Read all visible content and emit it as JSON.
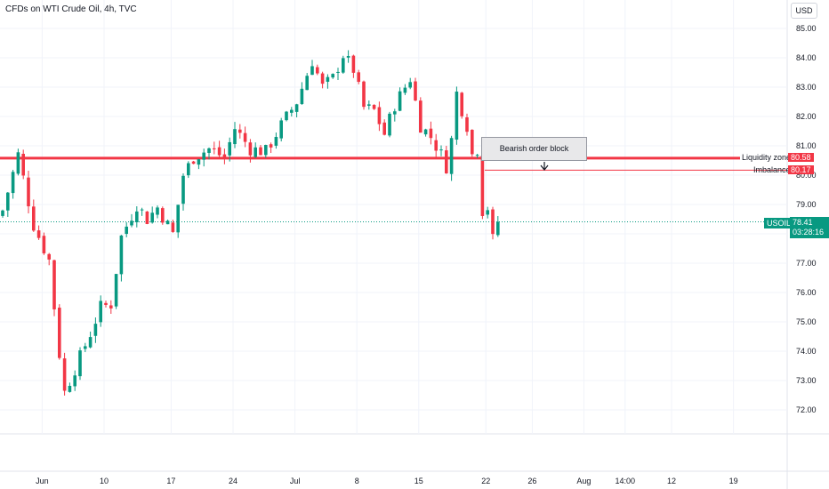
{
  "header": {
    "title": "CFDs on WTI Crude Oil, 4h, TVC",
    "currency_button": "USD"
  },
  "annotations": {
    "order_block_label": "Bearish order block",
    "liquidity_label": "Liquidity zone",
    "liquidity_price": "80.58",
    "imbalance_label": "Imbalance",
    "imbalance_price": "80.17",
    "symbol": "USOIL",
    "last_price": "78.41",
    "countdown": "03:28:16"
  },
  "colors": {
    "up": "#089981",
    "down": "#f23645",
    "zone_line": "#f23645",
    "grid": "#f0f3fa"
  },
  "chart_data": {
    "type": "candlestick",
    "title": "CFDs on WTI Crude Oil, 4h, TVC",
    "y_ticks": [
      85.0,
      84.0,
      83.0,
      82.0,
      81.0,
      80.0,
      79.0,
      78.0,
      77.0,
      76.0,
      75.0,
      74.0,
      73.0,
      72.0
    ],
    "ylim": [
      71.0,
      85.4
    ],
    "x_tick_labels": [
      "Jun",
      "10",
      "17",
      "24",
      "Jul",
      "8",
      "15",
      "22",
      "26",
      "Aug",
      "14:00",
      "12",
      "19"
    ],
    "x_tick_index": [
      8,
      20,
      33,
      45,
      57,
      69,
      81,
      94,
      103,
      113,
      121,
      130,
      142
    ],
    "levels": [
      {
        "name": "Liquidity zone",
        "value": 80.58
      },
      {
        "name": "Imbalance",
        "value": 80.17
      }
    ],
    "last_price": 78.41,
    "series_anchors": [
      {
        "i": 0,
        "c": 78.8
      },
      {
        "i": 3,
        "c": 80.7
      },
      {
        "i": 6,
        "c": 78.3
      },
      {
        "i": 9,
        "c": 77.1
      },
      {
        "i": 11,
        "c": 73.9
      },
      {
        "i": 12,
        "c": 72.6
      },
      {
        "i": 14,
        "c": 73.4
      },
      {
        "i": 17,
        "c": 74.6
      },
      {
        "i": 19,
        "c": 75.5
      },
      {
        "i": 21,
        "c": 75.6
      },
      {
        "i": 23,
        "c": 77.9
      },
      {
        "i": 26,
        "c": 79.0
      },
      {
        "i": 28,
        "c": 78.5
      },
      {
        "i": 30,
        "c": 78.9
      },
      {
        "i": 33,
        "c": 78.0
      },
      {
        "i": 35,
        "c": 80.0
      },
      {
        "i": 37,
        "c": 80.6
      },
      {
        "i": 40,
        "c": 80.9
      },
      {
        "i": 43,
        "c": 80.6
      },
      {
        "i": 45,
        "c": 81.6
      },
      {
        "i": 48,
        "c": 80.9
      },
      {
        "i": 51,
        "c": 80.8
      },
      {
        "i": 54,
        "c": 81.7
      },
      {
        "i": 57,
        "c": 82.5
      },
      {
        "i": 60,
        "c": 83.9
      },
      {
        "i": 62,
        "c": 83.0
      },
      {
        "i": 64,
        "c": 83.3
      },
      {
        "i": 66,
        "c": 84.1
      },
      {
        "i": 68,
        "c": 83.6
      },
      {
        "i": 70,
        "c": 82.3
      },
      {
        "i": 72,
        "c": 82.2
      },
      {
        "i": 74,
        "c": 81.4
      },
      {
        "i": 76,
        "c": 82.4
      },
      {
        "i": 79,
        "c": 83.3
      },
      {
        "i": 81,
        "c": 81.7
      },
      {
        "i": 83,
        "c": 81.3
      },
      {
        "i": 85,
        "c": 80.7
      },
      {
        "i": 86,
        "c": 80.3
      },
      {
        "i": 87,
        "c": 81.2
      },
      {
        "i": 88,
        "c": 82.8
      },
      {
        "i": 90,
        "c": 81.7
      },
      {
        "i": 91,
        "c": 80.7
      },
      {
        "i": 92,
        "c": 80.9
      },
      {
        "i": 93,
        "c": 78.8
      },
      {
        "i": 94,
        "c": 78.9
      },
      {
        "i": 95,
        "c": 77.8
      },
      {
        "i": 96,
        "c": 78.41
      }
    ]
  }
}
